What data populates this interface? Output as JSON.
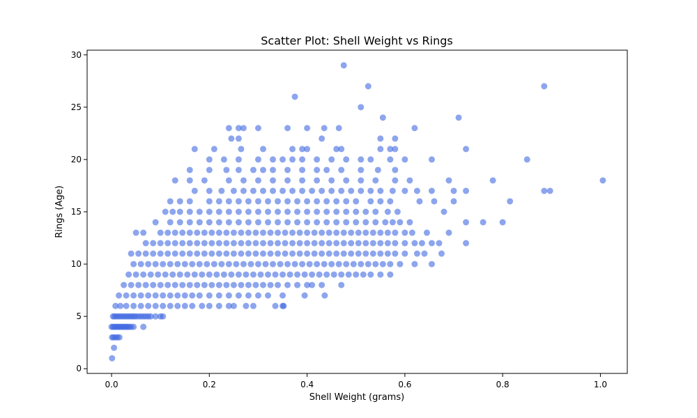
{
  "chart_data": {
    "type": "scatter",
    "title": "Scatter Plot: Shell Weight vs Rings",
    "xlabel": "Shell Weight (grams)",
    "ylabel": "Rings (Age)",
    "xlim": [
      -0.05,
      1.055
    ],
    "ylim": [
      -0.45,
      30.45
    ],
    "x_ticks": [
      0.0,
      0.2,
      0.4,
      0.6,
      0.8,
      1.0
    ],
    "x_tick_labels": [
      "0.0",
      "0.2",
      "0.4",
      "0.6",
      "0.8",
      "1.0"
    ],
    "y_ticks": [
      0,
      5,
      10,
      15,
      20,
      25,
      30
    ],
    "y_tick_labels": [
      "0",
      "5",
      "10",
      "15",
      "20",
      "25",
      "30"
    ],
    "grid": false,
    "legend": "none",
    "marker_color": "#4169e1",
    "marker_alpha": 0.6,
    "series": [
      {
        "bands": [
          {
            "y": 1,
            "x": [
              0.001
            ]
          },
          {
            "y": 2,
            "x": [
              0.005
            ]
          },
          {
            "y": 3,
            "x": [
              0.001,
              0.004,
              0.008,
              0.012,
              0.016
            ]
          },
          {
            "y": 4,
            "x": [
              0.0,
              0.003,
              0.006,
              0.009,
              0.012,
              0.015,
              0.018,
              0.021,
              0.024,
              0.027,
              0.03,
              0.033,
              0.036,
              0.04,
              0.045,
              0.065
            ]
          },
          {
            "y": 5,
            "x": [
              0.003,
              0.006,
              0.01,
              0.014,
              0.018,
              0.022,
              0.026,
              0.03,
              0.034,
              0.038,
              0.042,
              0.046,
              0.05,
              0.055,
              0.06,
              0.065,
              0.07,
              0.075,
              0.08,
              0.09,
              0.1,
              0.105
            ]
          },
          {
            "y": 6,
            "x": [
              0.008,
              0.018,
              0.03,
              0.045,
              0.06,
              0.075,
              0.09,
              0.105,
              0.12,
              0.135,
              0.15,
              0.165,
              0.185,
              0.2,
              0.22,
              0.24,
              0.25,
              0.275,
              0.29,
              0.335,
              0.35,
              0.352
            ]
          },
          {
            "y": 7,
            "x": [
              0.015,
              0.03,
              0.045,
              0.06,
              0.075,
              0.09,
              0.105,
              0.12,
              0.135,
              0.15,
              0.165,
              0.18,
              0.2,
              0.22,
              0.24,
              0.26,
              0.28,
              0.3,
              0.32,
              0.35,
              0.395,
              0.436
            ]
          },
          {
            "y": 8,
            "x": [
              0.025,
              0.04,
              0.055,
              0.07,
              0.085,
              0.1,
              0.115,
              0.13,
              0.145,
              0.16,
              0.175,
              0.19,
              0.205,
              0.22,
              0.235,
              0.25,
              0.265,
              0.28,
              0.295,
              0.31,
              0.325,
              0.34,
              0.36,
              0.38,
              0.4,
              0.41,
              0.43,
              0.47
            ]
          },
          {
            "y": 9,
            "x": [
              0.035,
              0.05,
              0.065,
              0.08,
              0.095,
              0.11,
              0.125,
              0.14,
              0.155,
              0.17,
              0.185,
              0.2,
              0.215,
              0.23,
              0.245,
              0.26,
              0.275,
              0.29,
              0.305,
              0.32,
              0.335,
              0.35,
              0.365,
              0.38,
              0.395,
              0.41,
              0.425,
              0.44,
              0.455,
              0.47,
              0.485,
              0.5,
              0.515,
              0.53,
              0.55,
              0.57
            ]
          },
          {
            "y": 10,
            "x": [
              0.045,
              0.06,
              0.075,
              0.09,
              0.105,
              0.12,
              0.135,
              0.15,
              0.165,
              0.18,
              0.195,
              0.21,
              0.225,
              0.24,
              0.255,
              0.27,
              0.285,
              0.3,
              0.315,
              0.33,
              0.345,
              0.36,
              0.375,
              0.39,
              0.405,
              0.42,
              0.435,
              0.45,
              0.465,
              0.48,
              0.495,
              0.51,
              0.525,
              0.54,
              0.555,
              0.57,
              0.59,
              0.62,
              0.655
            ]
          },
          {
            "y": 11,
            "x": [
              0.04,
              0.055,
              0.07,
              0.085,
              0.1,
              0.115,
              0.13,
              0.145,
              0.16,
              0.175,
              0.19,
              0.205,
              0.22,
              0.235,
              0.25,
              0.265,
              0.28,
              0.295,
              0.31,
              0.325,
              0.34,
              0.355,
              0.37,
              0.385,
              0.4,
              0.415,
              0.43,
              0.445,
              0.46,
              0.475,
              0.49,
              0.505,
              0.52,
              0.535,
              0.55,
              0.565,
              0.58,
              0.6,
              0.625,
              0.64,
              0.675
            ]
          },
          {
            "y": 12,
            "x": [
              0.07,
              0.085,
              0.1,
              0.115,
              0.13,
              0.145,
              0.16,
              0.175,
              0.19,
              0.205,
              0.22,
              0.235,
              0.25,
              0.265,
              0.28,
              0.295,
              0.31,
              0.325,
              0.34,
              0.355,
              0.37,
              0.385,
              0.4,
              0.415,
              0.43,
              0.445,
              0.46,
              0.475,
              0.49,
              0.505,
              0.52,
              0.535,
              0.55,
              0.565,
              0.58,
              0.6,
              0.62,
              0.635,
              0.655,
              0.67,
              0.725
            ]
          },
          {
            "y": 13,
            "x": [
              0.05,
              0.065,
              0.1,
              0.115,
              0.13,
              0.145,
              0.16,
              0.175,
              0.19,
              0.205,
              0.22,
              0.235,
              0.25,
              0.265,
              0.28,
              0.295,
              0.31,
              0.325,
              0.34,
              0.355,
              0.37,
              0.385,
              0.4,
              0.415,
              0.43,
              0.445,
              0.46,
              0.475,
              0.49,
              0.505,
              0.52,
              0.535,
              0.55,
              0.565,
              0.58,
              0.6,
              0.615,
              0.645,
              0.69
            ]
          },
          {
            "y": 14,
            "x": [
              0.09,
              0.12,
              0.14,
              0.16,
              0.18,
              0.2,
              0.22,
              0.24,
              0.26,
              0.28,
              0.3,
              0.32,
              0.34,
              0.36,
              0.38,
              0.4,
              0.42,
              0.44,
              0.46,
              0.48,
              0.5,
              0.52,
              0.54,
              0.56,
              0.575,
              0.59,
              0.61,
              0.725,
              0.76,
              0.8
            ]
          },
          {
            "y": 15,
            "x": [
              0.11,
              0.125,
              0.14,
              0.16,
              0.18,
              0.2,
              0.22,
              0.24,
              0.26,
              0.28,
              0.3,
              0.32,
              0.34,
              0.36,
              0.38,
              0.4,
              0.42,
              0.44,
              0.46,
              0.48,
              0.5,
              0.52,
              0.54,
              0.565,
              0.585,
              0.68
            ]
          },
          {
            "y": 16,
            "x": [
              0.12,
              0.14,
              0.16,
              0.2,
              0.22,
              0.24,
              0.26,
              0.28,
              0.3,
              0.32,
              0.34,
              0.36,
              0.38,
              0.4,
              0.42,
              0.44,
              0.46,
              0.48,
              0.5,
              0.53,
              0.55,
              0.57,
              0.63,
              0.66,
              0.7,
              0.815
            ]
          },
          {
            "y": 17,
            "x": [
              0.17,
              0.2,
              0.225,
              0.25,
              0.27,
              0.29,
              0.31,
              0.33,
              0.35,
              0.37,
              0.39,
              0.41,
              0.43,
              0.45,
              0.47,
              0.49,
              0.51,
              0.53,
              0.55,
              0.575,
              0.6,
              0.625,
              0.655,
              0.7,
              0.725,
              0.885,
              0.897
            ]
          },
          {
            "y": 18,
            "x": [
              0.13,
              0.16,
              0.19,
              0.24,
              0.27,
              0.3,
              0.33,
              0.36,
              0.39,
              0.42,
              0.45,
              0.48,
              0.51,
              0.54,
              0.58,
              0.61,
              0.69,
              0.78,
              1.005
            ]
          },
          {
            "y": 19,
            "x": [
              0.16,
              0.2,
              0.235,
              0.26,
              0.29,
              0.31,
              0.33,
              0.36,
              0.39,
              0.42,
              0.44,
              0.47,
              0.51,
              0.545,
              0.58
            ]
          },
          {
            "y": 20,
            "x": [
              0.2,
              0.23,
              0.26,
              0.3,
              0.33,
              0.35,
              0.37,
              0.39,
              0.42,
              0.45,
              0.48,
              0.51,
              0.53,
              0.57,
              0.6,
              0.655,
              0.85
            ]
          },
          {
            "y": 21,
            "x": [
              0.17,
              0.21,
              0.265,
              0.31,
              0.37,
              0.39,
              0.4,
              0.46,
              0.47,
              0.55,
              0.57,
              0.58,
              0.725
            ]
          },
          {
            "y": 22,
            "x": [
              0.245,
              0.26,
              0.43,
              0.55,
              0.58
            ]
          },
          {
            "y": 23,
            "x": [
              0.24,
              0.26,
              0.27,
              0.3,
              0.36,
              0.4,
              0.435,
              0.465,
              0.62
            ]
          },
          {
            "y": 24,
            "x": [
              0.555,
              0.71
            ]
          },
          {
            "y": 25,
            "x": [
              0.51
            ]
          },
          {
            "y": 26,
            "x": [
              0.375
            ]
          },
          {
            "y": 27,
            "x": [
              0.525,
              0.885
            ]
          },
          {
            "y": 29,
            "x": [
              0.475
            ]
          }
        ]
      }
    ]
  }
}
